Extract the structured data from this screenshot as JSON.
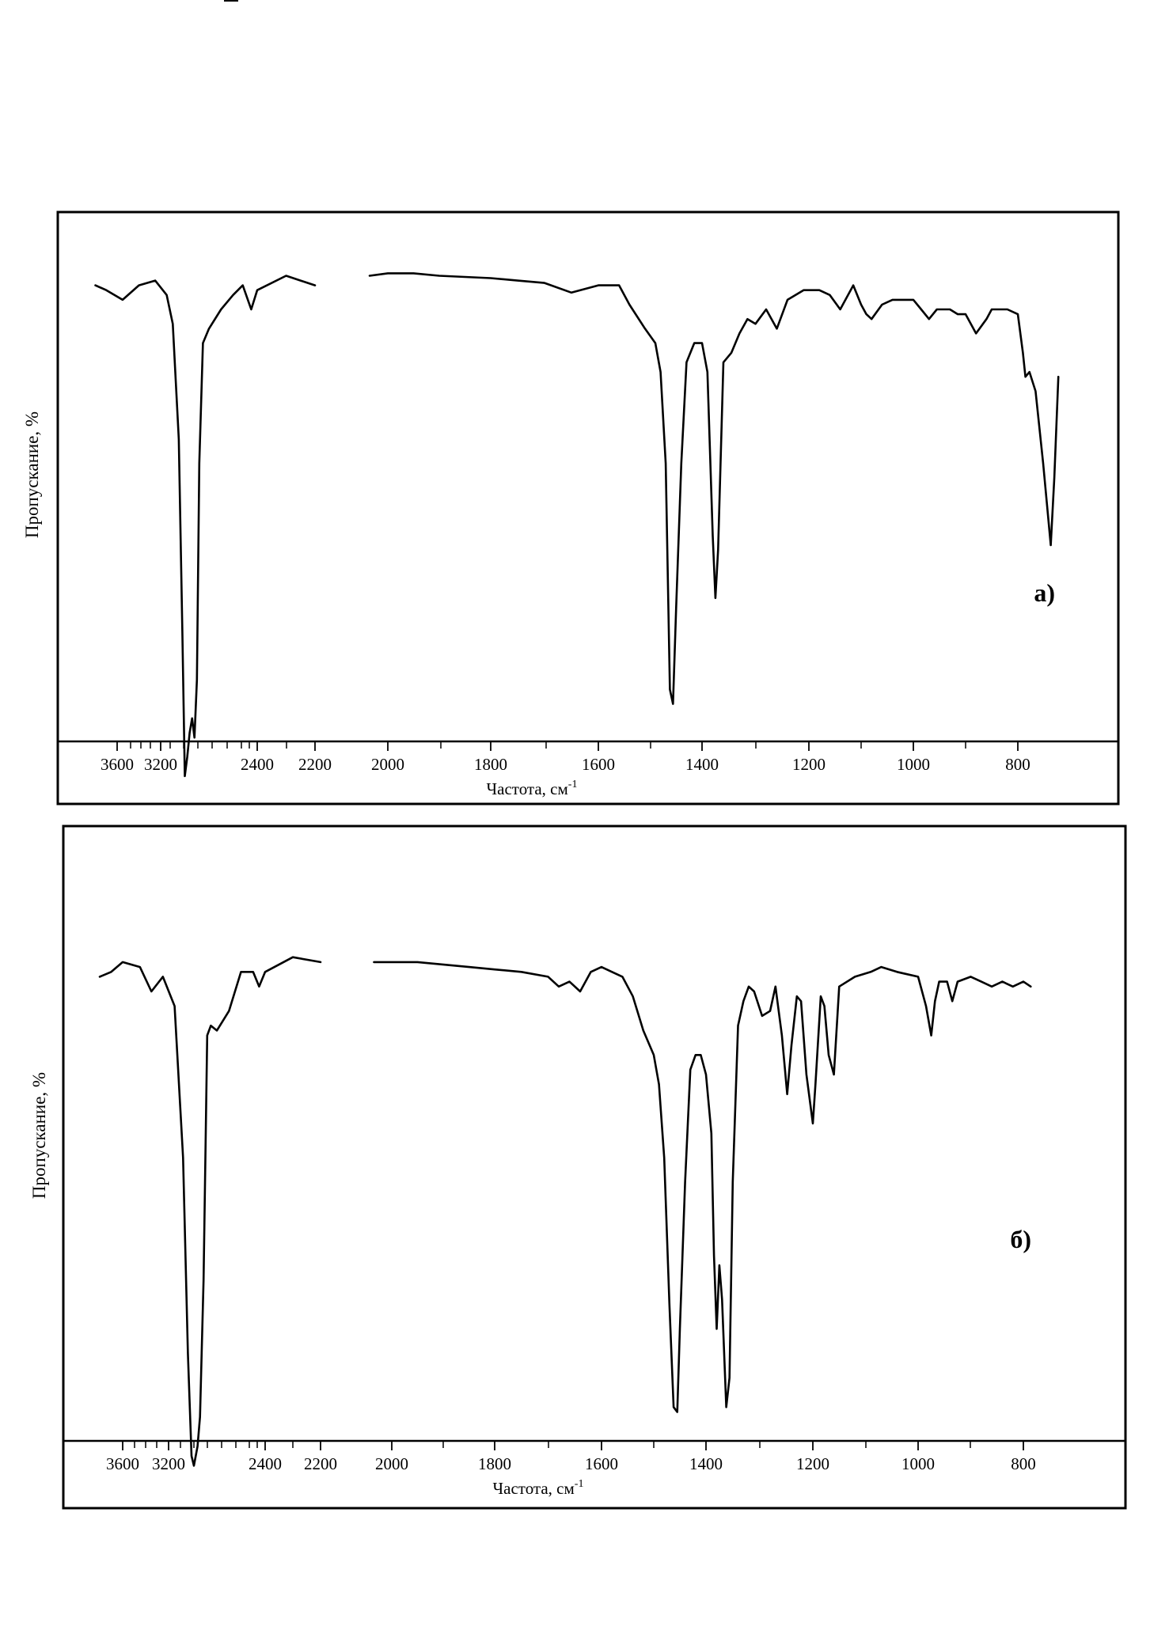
{
  "chart_data": [
    {
      "type": "line",
      "panel_label": "а)",
      "xlabel": "Частота, см",
      "xlabel_superscript": "-1",
      "ylabel": "Пропускание, %",
      "y_scale": "transmittance, no numeric ticks",
      "x_scale": "two-segment wavenumber axis (high-frequency region compressed)",
      "x_ticks": [
        "3600",
        "3200",
        "2400",
        "2200",
        "2000",
        "1800",
        "1600",
        "1400",
        "1200",
        "1000",
        "800"
      ],
      "series": [
        {
          "points": [
            [
              3800,
              0.92
            ],
            [
              3700,
              0.91
            ],
            [
              3550,
              0.89
            ],
            [
              3400,
              0.92
            ],
            [
              3250,
              0.93
            ],
            [
              3150,
              0.9
            ],
            [
              3100,
              0.84
            ],
            [
              3050,
              0.6
            ],
            [
              3020,
              0.2
            ],
            [
              3000,
              -0.1
            ],
            [
              2980,
              -0.06
            ],
            [
              2960,
              -0.01
            ],
            [
              2940,
              0.02
            ],
            [
              2920,
              -0.02
            ],
            [
              2900,
              0.1
            ],
            [
              2880,
              0.55
            ],
            [
              2850,
              0.8
            ],
            [
              2800,
              0.83
            ],
            [
              2700,
              0.87
            ],
            [
              2600,
              0.9
            ],
            [
              2520,
              0.92
            ],
            [
              2450,
              0.87
            ],
            [
              2400,
              0.91
            ],
            [
              2300,
              0.94
            ],
            [
              2250,
              0.93
            ],
            [
              2200,
              0.92
            ]
          ],
          "segment_break_after_x": 2200
        },
        {
          "points": [
            [
              2050,
              0.94
            ],
            [
              2000,
              0.945
            ],
            [
              1950,
              0.945
            ],
            [
              1900,
              0.94
            ],
            [
              1800,
              0.935
            ],
            [
              1750,
              0.93
            ],
            [
              1700,
              0.925
            ],
            [
              1650,
              0.905
            ],
            [
              1600,
              0.92
            ],
            [
              1560,
              0.92
            ],
            [
              1540,
              0.88
            ],
            [
              1510,
              0.83
            ],
            [
              1490,
              0.8
            ],
            [
              1480,
              0.74
            ],
            [
              1470,
              0.55
            ],
            [
              1462,
              0.08
            ],
            [
              1456,
              0.05
            ],
            [
              1450,
              0.25
            ],
            [
              1440,
              0.55
            ],
            [
              1430,
              0.76
            ],
            [
              1415,
              0.8
            ],
            [
              1400,
              0.8
            ],
            [
              1390,
              0.74
            ],
            [
              1380,
              0.4
            ],
            [
              1375,
              0.27
            ],
            [
              1370,
              0.37
            ],
            [
              1360,
              0.76
            ],
            [
              1345,
              0.78
            ],
            [
              1330,
              0.82
            ],
            [
              1315,
              0.85
            ],
            [
              1300,
              0.84
            ],
            [
              1280,
              0.87
            ],
            [
              1260,
              0.83
            ],
            [
              1240,
              0.89
            ],
            [
              1210,
              0.91
            ],
            [
              1180,
              0.91
            ],
            [
              1160,
              0.9
            ],
            [
              1140,
              0.87
            ],
            [
              1115,
              0.92
            ],
            [
              1100,
              0.88
            ],
            [
              1090,
              0.86
            ],
            [
              1080,
              0.85
            ],
            [
              1060,
              0.88
            ],
            [
              1040,
              0.89
            ],
            [
              1000,
              0.89
            ],
            [
              985,
              0.87
            ],
            [
              970,
              0.85
            ],
            [
              955,
              0.87
            ],
            [
              930,
              0.87
            ],
            [
              915,
              0.86
            ],
            [
              900,
              0.86
            ],
            [
              880,
              0.82
            ],
            [
              860,
              0.85
            ],
            [
              850,
              0.87
            ],
            [
              820,
              0.87
            ],
            [
              800,
              0.86
            ],
            [
              790,
              0.78
            ],
            [
              785,
              0.73
            ],
            [
              777,
              0.74
            ],
            [
              765,
              0.7
            ],
            [
              750,
              0.55
            ],
            [
              735,
              0.38
            ],
            [
              728,
              0.52
            ],
            [
              720,
              0.73
            ]
          ]
        }
      ]
    },
    {
      "type": "line",
      "panel_label": "б)",
      "xlabel": "Частота, см",
      "xlabel_superscript": "-1",
      "ylabel": "Пропускание, %",
      "y_scale": "transmittance, no numeric ticks",
      "x_scale": "two-segment wavenumber axis (high-frequency region compressed)",
      "x_ticks": [
        "3600",
        "3200",
        "2400",
        "2200",
        "2000",
        "1800",
        "1600",
        "1400",
        "1200",
        "1000",
        "800"
      ],
      "series": [
        {
          "points": [
            [
              3800,
              0.92
            ],
            [
              3700,
              0.93
            ],
            [
              3600,
              0.95
            ],
            [
              3450,
              0.94
            ],
            [
              3350,
              0.89
            ],
            [
              3250,
              0.92
            ],
            [
              3150,
              0.86
            ],
            [
              3080,
              0.55
            ],
            [
              3040,
              0.15
            ],
            [
              3010,
              -0.06
            ],
            [
              2990,
              -0.08
            ],
            [
              2960,
              -0.04
            ],
            [
              2940,
              0.02
            ],
            [
              2910,
              0.3
            ],
            [
              2880,
              0.8
            ],
            [
              2850,
              0.82
            ],
            [
              2800,
              0.81
            ],
            [
              2700,
              0.85
            ],
            [
              2600,
              0.93
            ],
            [
              2500,
              0.93
            ],
            [
              2450,
              0.9
            ],
            [
              2400,
              0.93
            ],
            [
              2300,
              0.96
            ],
            [
              2200,
              0.95
            ]
          ],
          "segment_break_after_x": 2200
        },
        {
          "points": [
            [
              2050,
              0.95
            ],
            [
              1950,
              0.95
            ],
            [
              1850,
              0.94
            ],
            [
              1800,
              0.935
            ],
            [
              1750,
              0.93
            ],
            [
              1700,
              0.92
            ],
            [
              1680,
              0.9
            ],
            [
              1660,
              0.91
            ],
            [
              1640,
              0.89
            ],
            [
              1620,
              0.93
            ],
            [
              1600,
              0.94
            ],
            [
              1580,
              0.93
            ],
            [
              1560,
              0.92
            ],
            [
              1540,
              0.88
            ],
            [
              1520,
              0.81
            ],
            [
              1500,
              0.76
            ],
            [
              1490,
              0.7
            ],
            [
              1480,
              0.55
            ],
            [
              1470,
              0.25
            ],
            [
              1462,
              0.04
            ],
            [
              1455,
              0.03
            ],
            [
              1450,
              0.2
            ],
            [
              1440,
              0.5
            ],
            [
              1430,
              0.73
            ],
            [
              1420,
              0.76
            ],
            [
              1410,
              0.76
            ],
            [
              1400,
              0.72
            ],
            [
              1390,
              0.6
            ],
            [
              1385,
              0.35
            ],
            [
              1380,
              0.2
            ],
            [
              1375,
              0.33
            ],
            [
              1370,
              0.26
            ],
            [
              1362,
              0.04
            ],
            [
              1356,
              0.1
            ],
            [
              1350,
              0.5
            ],
            [
              1340,
              0.82
            ],
            [
              1330,
              0.87
            ],
            [
              1320,
              0.9
            ],
            [
              1310,
              0.89
            ],
            [
              1295,
              0.84
            ],
            [
              1280,
              0.85
            ],
            [
              1270,
              0.9
            ],
            [
              1258,
              0.8
            ],
            [
              1248,
              0.68
            ],
            [
              1240,
              0.78
            ],
            [
              1230,
              0.88
            ],
            [
              1222,
              0.87
            ],
            [
              1212,
              0.72
            ],
            [
              1200,
              0.62
            ],
            [
              1195,
              0.7
            ],
            [
              1185,
              0.88
            ],
            [
              1178,
              0.86
            ],
            [
              1170,
              0.76
            ],
            [
              1160,
              0.72
            ],
            [
              1150,
              0.9
            ],
            [
              1120,
              0.92
            ],
            [
              1090,
              0.93
            ],
            [
              1070,
              0.94
            ],
            [
              1040,
              0.93
            ],
            [
              1000,
              0.92
            ],
            [
              985,
              0.86
            ],
            [
              975,
              0.8
            ],
            [
              968,
              0.87
            ],
            [
              960,
              0.91
            ],
            [
              945,
              0.91
            ],
            [
              935,
              0.87
            ],
            [
              925,
              0.91
            ],
            [
              900,
              0.92
            ],
            [
              880,
              0.91
            ],
            [
              860,
              0.9
            ],
            [
              840,
              0.91
            ],
            [
              820,
              0.9
            ],
            [
              800,
              0.91
            ],
            [
              785,
              0.9
            ]
          ]
        }
      ]
    }
  ]
}
